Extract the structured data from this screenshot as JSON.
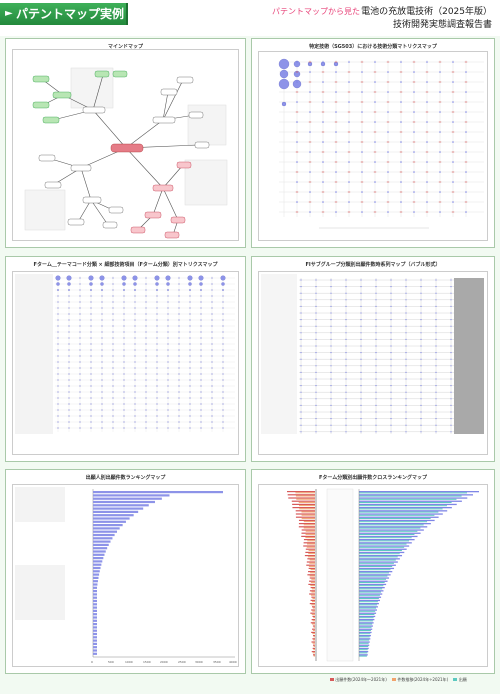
{
  "header": {
    "tab_label": "パテントマップ実例",
    "tag": "パテントマップから見た",
    "title_line1": "電池の充放電技術（2025年版）",
    "title_line2": "技術開発実態調査報告書"
  },
  "panels": {
    "p1_title": "マインドマップ",
    "p2_title": "特定技術（SG503）における技術分類マトリクスマップ",
    "p3_title": "Fターム＿テーマコード分類 × 細部技術項目（Fターム分類）別マトリクスマップ",
    "p4_title": "FIサブグループ分類別出願件数時系列マップ（バブル形式）",
    "p5_title": "出願人別出願件数ランキングマップ",
    "p6_title": "Fターム分類別出願件数クロスランキングマップ"
  },
  "colors": {
    "brand_green": "#2f9e4a",
    "accent_pink": "#e8447a",
    "bubble_blue": "#7f86e6",
    "bar_red": "#d75a5a",
    "bar_orange": "#f1a36c",
    "bar_teal": "#5cc9c0"
  },
  "p6_legend": [
    "出願件数(2024年～2021年)",
    "件数推移(2024年÷2021年)",
    "出願"
  ],
  "p5_axis": [
    "0",
    "500",
    "1000",
    "1500",
    "2000",
    "2500",
    "3000",
    "3500",
    "4000"
  ]
}
